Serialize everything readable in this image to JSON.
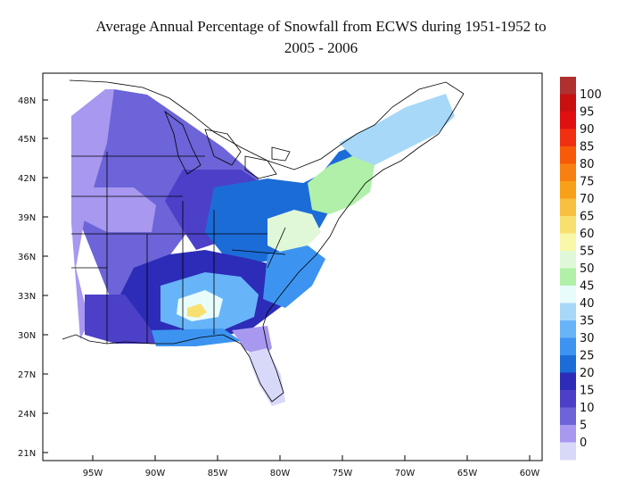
{
  "title_line1": "Average Annual Percentage of Snowfall from ECWS during 1951-1952 to",
  "title_line2": "2005 - 2006",
  "lat_labels": [
    "48N",
    "45N",
    "42N",
    "39N",
    "36N",
    "33N",
    "30N",
    "27N",
    "24N",
    "21N"
  ],
  "lon_labels": [
    "95W",
    "90W",
    "85W",
    "80W",
    "75W",
    "70W",
    "65W",
    "60W"
  ],
  "colorbar": {
    "labels": [
      "100",
      "95",
      "90",
      "85",
      "80",
      "75",
      "70",
      "65",
      "60",
      "55",
      "50",
      "45",
      "40",
      "35",
      "30",
      "25",
      "20",
      "15",
      "10",
      "5",
      "0"
    ],
    "colors": [
      "#b03030",
      "#c81010",
      "#e01010",
      "#f03010",
      "#f85a08",
      "#f88010",
      "#f8a018",
      "#f8c040",
      "#f8e070",
      "#f8f8a8",
      "#e0f8d8",
      "#b0f0a8",
      "#e8fcfc",
      "#a8d8f8",
      "#68b4f8",
      "#3c94f0",
      "#1c6cd8",
      "#2c2cb8",
      "#4c40c8",
      "#6c64d8",
      "#a898f0",
      "#d8d8f8"
    ]
  },
  "legend": {
    "colors": {
      "c0": "#d8d8f8",
      "c5": "#a898f0",
      "c10": "#6c64d8",
      "c15": "#4c40c8",
      "c20": "#2c2cb8",
      "c25": "#1c6cd8",
      "c30": "#3c94f0",
      "c35": "#68b4f8",
      "c40": "#a8d8f8",
      "c45": "#e8fcfc",
      "c50": "#b0f0a8",
      "c55": "#e0f8d8",
      "c60": "#f8e070"
    }
  }
}
